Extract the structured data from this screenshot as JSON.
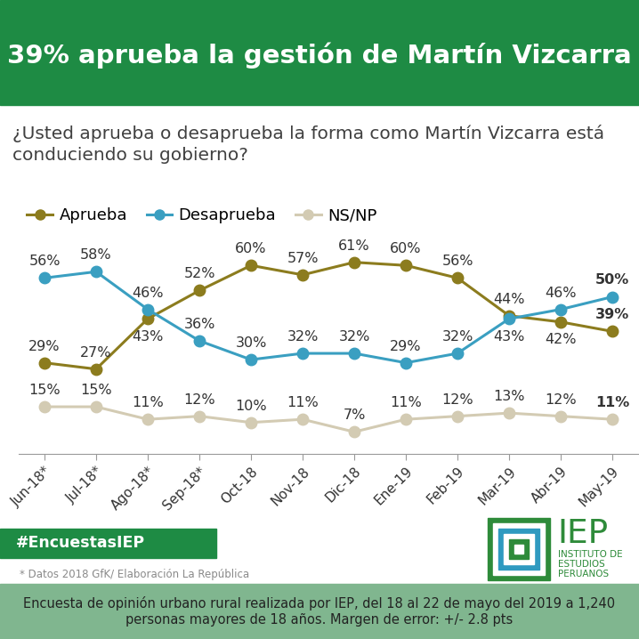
{
  "chart_data": {
    "type": "line",
    "title": "39% aprueba la gestión de Martín Vizcarra",
    "subtitle": "¿Usted aprueba o desaprueba la forma como Martín Vizcarra está conduciendo su gobierno?",
    "categories": [
      "Jun-18*",
      "Jul-18*",
      "Ago-18*",
      "Sep-18*",
      "Oct-18",
      "Nov-18",
      "Dic-18",
      "Ene-19",
      "Feb-19",
      "Mar-19",
      "Abr-19",
      "May-19"
    ],
    "series": [
      {
        "name": "Aprueba",
        "color": "#8c7c1e",
        "marker": "circle",
        "line_style": "solid",
        "values": [
          29,
          27,
          43,
          52,
          60,
          57,
          61,
          60,
          56,
          44,
          42,
          39
        ],
        "value_labels": [
          "29%",
          "27%",
          "43%",
          "52%",
          "60%",
          "57%",
          "61%",
          "60%",
          "56%",
          "44%",
          "42%",
          "39%"
        ]
      },
      {
        "name": "Desaprueba",
        "color": "#3a9fc1",
        "marker": "circle",
        "line_style": "solid",
        "values": [
          56,
          58,
          46,
          36,
          30,
          32,
          32,
          29,
          32,
          43,
          46,
          50
        ],
        "value_labels": [
          "56%",
          "58%",
          "46%",
          "36%",
          "30%",
          "32%",
          "32%",
          "29%",
          "32%",
          "43%",
          "46%",
          "50%"
        ]
      },
      {
        "name": "NS/NP",
        "color": "#d3cbb3",
        "marker": "circle",
        "line_style": "solid",
        "values": [
          15,
          15,
          11,
          12,
          10,
          11,
          7,
          11,
          12,
          13,
          12,
          11
        ],
        "value_labels": [
          "15%",
          "15%",
          "11%",
          "12%",
          "10%",
          "11%",
          "7%",
          "11%",
          "12%",
          "13%",
          "12%",
          "11%"
        ]
      }
    ],
    "ylim": [
      0,
      68
    ],
    "grid": false,
    "legend": "upper left",
    "data_labels": true,
    "tick_labels": "x"
  },
  "hashtag": "#EncuestasIEP",
  "note": "* Datos 2018 GfK/ Elaboración La República",
  "footer": "Encuesta de opinión urbano rural realizada por IEP, del 18 al 22 de mayo del 2019 a 1,240 personas mayores de 18 años. Margen de error: +/- 2.8 pts",
  "logo": {
    "name": "IEP",
    "lines": [
      "INSTITUTO DE",
      "ESTUDIOS",
      "PERUANOS"
    ]
  }
}
